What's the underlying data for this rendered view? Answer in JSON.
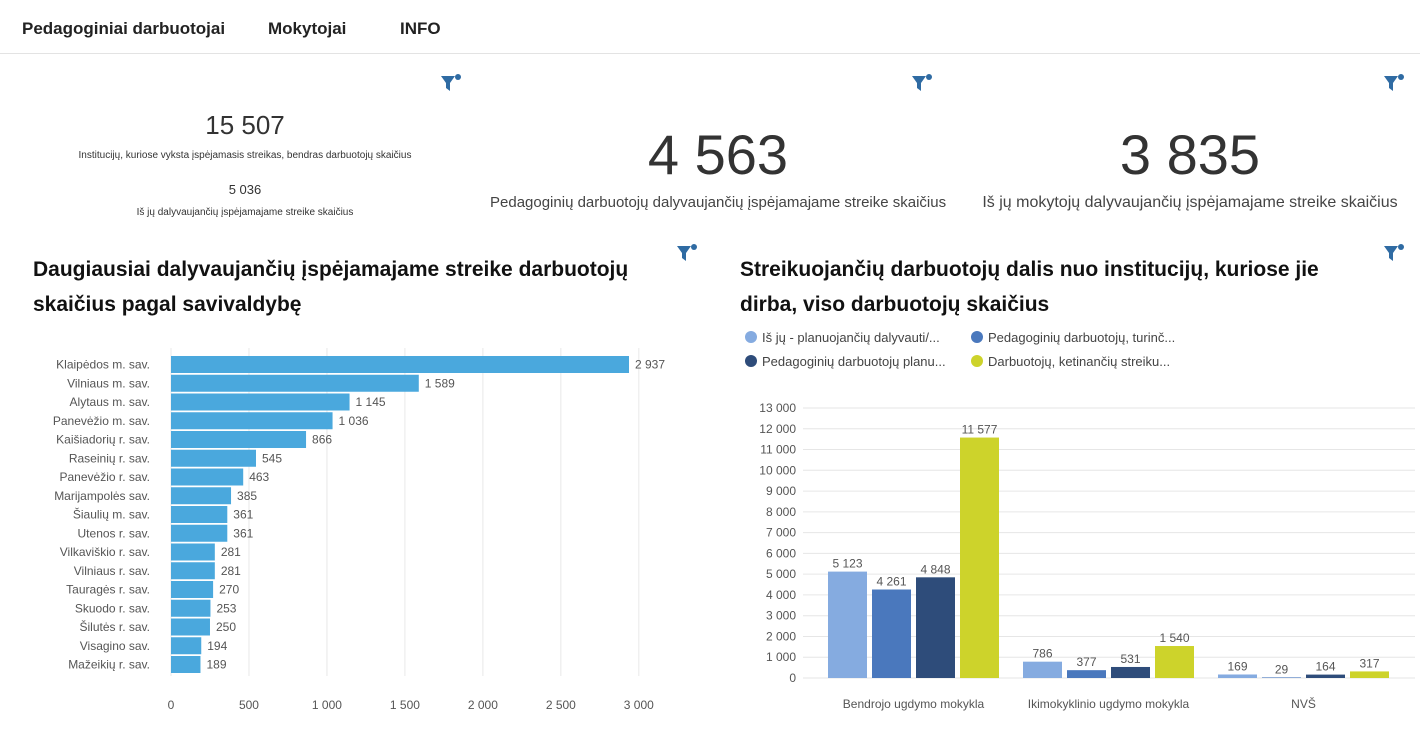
{
  "nav": {
    "tabs": [
      "Pedagoginiai darbuotojai",
      "Mokytojai",
      "INFO"
    ]
  },
  "kpi": {
    "institutions_total_value": "15 507",
    "institutions_total_label": "Institucijų, kuriose vyksta įspėjamasis streikas, bendras darbuotojų skaičius",
    "institutions_participating_value": "5 036",
    "institutions_participating_label": "Iš jų dalyvaujančių įspėjamajame streike skaičius",
    "pedagogical_value": "4 563",
    "pedagogical_label": "Pedagoginių darbuotojų dalyvaujančių įspėjamajame streike skaičius",
    "teachers_value": "3 835",
    "teachers_label": "Iš jų mokytojų dalyvaujančių įspėjamajame streike skaičius"
  },
  "left_panel": {
    "title": "Daugiausiai dalyvaujančių įspėjamajame streike darbuotojų skaičius pagal savivaldybę"
  },
  "right_panel": {
    "title": "Streikuojančių darbuotojų dalis nuo institucijų, kuriose jie dirba, viso darbuotojų skaičius"
  },
  "colors": {
    "bar_blue": "#4aa8dd",
    "s1": "#85abe0",
    "s2": "#4a78bd",
    "s3": "#2e4c7a",
    "s4": "#cdd32b",
    "filter_icon": "#2f6ba3"
  },
  "icons": [
    "filter-icon"
  ],
  "chart_data": [
    {
      "type": "bar",
      "orientation": "horizontal",
      "categories": [
        "Klaipėdos m. sav.",
        "Vilniaus m. sav.",
        "Alytaus m. sav.",
        "Panevėžio m. sav.",
        "Kaišiadorių r. sav.",
        "Raseinių r. sav.",
        "Panevėžio r. sav.",
        "Marijampolės sav.",
        "Šiaulių m. sav.",
        "Utenos r. sav.",
        "Vilkaviškio r. sav.",
        "Vilniaus r. sav.",
        "Tauragės r. sav.",
        "Skuodo r. sav.",
        "Šilutės r. sav.",
        "Visagino sav.",
        "Mažeikių r. sav."
      ],
      "values": [
        2937,
        1589,
        1145,
        1036,
        866,
        545,
        463,
        385,
        361,
        361,
        281,
        281,
        270,
        253,
        250,
        194,
        189
      ],
      "data_labels": [
        "2 937",
        "1 589",
        "1 145",
        "1 036",
        "866",
        "545",
        "463",
        "385",
        "361",
        "361",
        "281",
        "281",
        "270",
        "253",
        "250",
        "194",
        "189"
      ],
      "xlim": [
        0,
        3100
      ],
      "x_ticks": [
        0,
        500,
        1000,
        1500,
        2000,
        2500,
        3000
      ],
      "x_tick_labels": [
        "0",
        "500",
        "1 000",
        "1 500",
        "2 000",
        "2 500",
        "3 000"
      ],
      "grid": true
    },
    {
      "type": "bar",
      "categories": [
        "Bendrojo ugdymo mokykla",
        "Ikimokyklinio ugdymo mokykla",
        "NVŠ"
      ],
      "series": [
        {
          "name": "Iš jų - planuojančių dalyvauti/...",
          "values": [
            5123,
            786,
            169
          ],
          "labels": [
            "5 123",
            "786",
            "169"
          ]
        },
        {
          "name": "Pedagoginių darbuotojų, turinč...",
          "values": [
            4261,
            377,
            29
          ],
          "labels": [
            "4 261",
            "377",
            "29"
          ]
        },
        {
          "name": "Pedagoginių darbuotojų planu...",
          "values": [
            4848,
            531,
            164
          ],
          "labels": [
            "4 848",
            "531",
            "164"
          ]
        },
        {
          "name": "Darbuotojų, ketinančių streiku...",
          "values": [
            11577,
            1540,
            317
          ],
          "labels": [
            "11 577",
            "1 540",
            "317"
          ]
        }
      ],
      "ylim": [
        0,
        13000
      ],
      "y_ticks": [
        0,
        1000,
        2000,
        3000,
        4000,
        5000,
        6000,
        7000,
        8000,
        9000,
        10000,
        11000,
        12000,
        13000
      ],
      "y_tick_labels": [
        "0",
        "1 000",
        "2 000",
        "3 000",
        "4 000",
        "5 000",
        "6 000",
        "7 000",
        "8 000",
        "9 000",
        "10 000",
        "11 000",
        "12 000",
        "13 000"
      ],
      "legend": "top-left",
      "grid": true
    }
  ]
}
